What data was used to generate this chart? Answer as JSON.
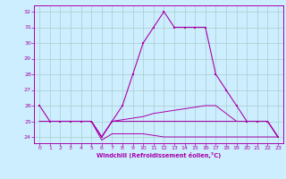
{
  "xlabel": "Windchill (Refroidissement éolien,°C)",
  "background_color": "#cceeff",
  "grid_color": "#aacccc",
  "line_color": "#aa00aa",
  "ylim": [
    23.6,
    32.4
  ],
  "xlim": [
    -0.5,
    23.5
  ],
  "yticks": [
    24,
    25,
    26,
    27,
    28,
    29,
    30,
    31,
    32
  ],
  "xticks": [
    0,
    1,
    2,
    3,
    4,
    5,
    6,
    7,
    8,
    9,
    10,
    11,
    12,
    13,
    14,
    15,
    16,
    17,
    18,
    19,
    20,
    21,
    22,
    23
  ],
  "series1_y": [
    26,
    25,
    25,
    25,
    25,
    25,
    24,
    25,
    26,
    28,
    30,
    31,
    32,
    31,
    31,
    31,
    31,
    28,
    27,
    26,
    25,
    25,
    25,
    24
  ],
  "series2_y": [
    25,
    25,
    25,
    25,
    25,
    25,
    24,
    25,
    25.1,
    25.2,
    25.3,
    25.5,
    25.6,
    25.7,
    25.8,
    25.9,
    26.0,
    26.0,
    25.5,
    25.0,
    25.0,
    25.0,
    25.0,
    24.0
  ],
  "series3_y": [
    25,
    25,
    25,
    25,
    25,
    25,
    24,
    25,
    25,
    25,
    25,
    25,
    25,
    25,
    25,
    25,
    25,
    25,
    25,
    25,
    25,
    25,
    25,
    24
  ],
  "series4_y": [
    25,
    25,
    25,
    25,
    25,
    25,
    23.8,
    24.2,
    24.2,
    24.2,
    24.2,
    24.1,
    24.0,
    24.0,
    24.0,
    24.0,
    24.0,
    24.0,
    24.0,
    24.0,
    24.0,
    24.0,
    24.0,
    24.0
  ]
}
